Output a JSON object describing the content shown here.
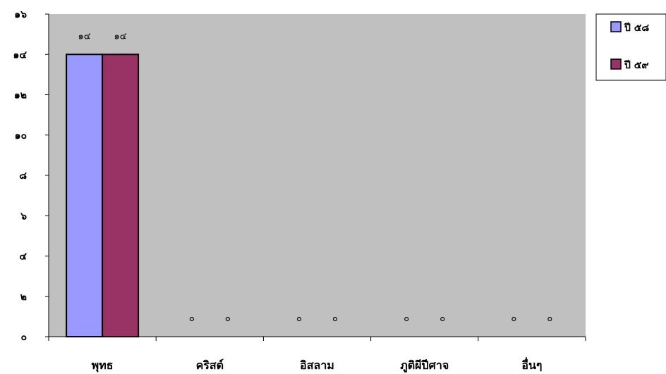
{
  "chart_data": {
    "type": "bar",
    "categories": [
      "พุทธ",
      "คริสต์",
      "อิสลาม",
      "ภูติผีปีศาจ",
      "อื่นๆ"
    ],
    "series": [
      {
        "name": "ปี ๕๘",
        "values": [
          14,
          0,
          0,
          0,
          0
        ],
        "color": "#9999ff"
      },
      {
        "name": "ปี ๕๙",
        "values": [
          14,
          0,
          0,
          0,
          0
        ],
        "color": "#993366"
      }
    ],
    "data_labels": [
      [
        "๑๔",
        "๐",
        "๐",
        "๐",
        "๐"
      ],
      [
        "๑๔",
        "๐",
        "๐",
        "๐",
        "๐"
      ]
    ],
    "ylim": [
      0,
      16
    ],
    "yticks": [
      0,
      2,
      4,
      6,
      8,
      10,
      12,
      14,
      16
    ],
    "ytick_labels": [
      "๐",
      "๒",
      "๔",
      "๖",
      "๘",
      "๑๐",
      "๑๒",
      "๑๔",
      "๑๖"
    ],
    "plot_background": "#c0c0c0",
    "grid": false,
    "legend": "top-right"
  }
}
